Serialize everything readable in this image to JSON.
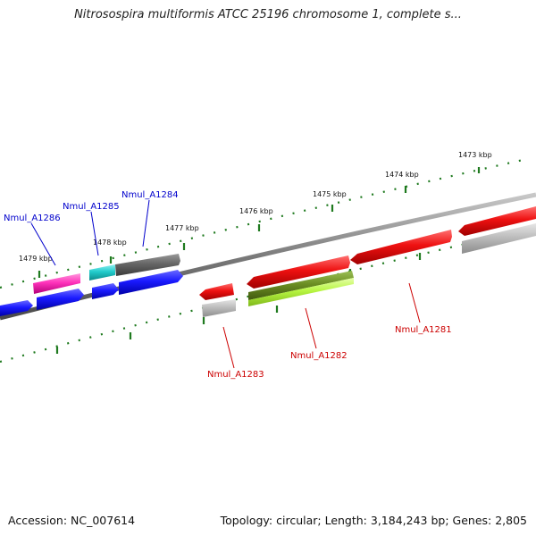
{
  "title": "Nitrosospira multiformis ATCC 25196 chromosome 1, complete s...",
  "accession": "Accession: NC_007614",
  "summary": "Topology: circular; Length: 3,184,243 bp; Genes: 2,805",
  "colors": {
    "backbone": "#7a7a7a",
    "ticks": "#1f7a1f",
    "label_blue": "#0000cc",
    "label_red": "#cc0000",
    "blue": "#1a1aff",
    "red": "#ee1111",
    "magenta": "#ff33bb",
    "cyan": "#22cccc",
    "dark_gray": "#666666",
    "light_gray": "#bdbdbd",
    "olive": "#6b8e23",
    "lime": "#b7f542"
  },
  "scale_labels": [
    "1473 kbp",
    "1474 kbp",
    "1475 kbp",
    "1476 kbp",
    "1477 kbp",
    "1478 kbp",
    "1479 kbp"
  ],
  "gene_labels": [
    {
      "id": "nmul-a1286",
      "text": "Nmul_A1286",
      "color": "label_blue"
    },
    {
      "id": "nmul-a1285",
      "text": "Nmul_A1285",
      "color": "label_blue"
    },
    {
      "id": "nmul-a1284",
      "text": "Nmul_A1284",
      "color": "label_blue"
    },
    {
      "id": "nmul-a1283",
      "text": "Nmul_A1283",
      "color": "label_red"
    },
    {
      "id": "nmul-a1282",
      "text": "Nmul_A1282",
      "color": "label_red"
    },
    {
      "id": "nmul-a1281",
      "text": "Nmul_A1281",
      "color": "label_red"
    }
  ]
}
